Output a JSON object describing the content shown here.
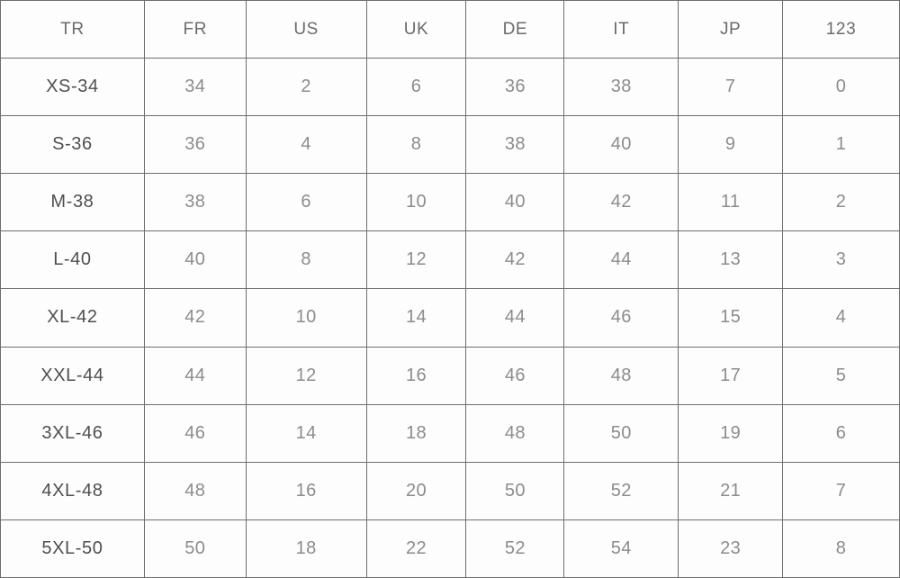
{
  "chart_data": {
    "type": "table",
    "columns": [
      "TR",
      "FR",
      "US",
      "UK",
      "DE",
      "IT",
      "JP",
      "123"
    ],
    "rows": [
      [
        "XS-34",
        "34",
        "2",
        "6",
        "36",
        "38",
        "7",
        "0"
      ],
      [
        "S-36",
        "36",
        "4",
        "8",
        "38",
        "40",
        "9",
        "1"
      ],
      [
        "M-38",
        "38",
        "6",
        "10",
        "40",
        "42",
        "11",
        "2"
      ],
      [
        "L-40",
        "40",
        "8",
        "12",
        "42",
        "44",
        "13",
        "3"
      ],
      [
        "XL-42",
        "42",
        "10",
        "14",
        "44",
        "46",
        "15",
        "4"
      ],
      [
        "XXL-44",
        "44",
        "12",
        "16",
        "46",
        "48",
        "17",
        "5"
      ],
      [
        "3XL-46",
        "46",
        "14",
        "18",
        "48",
        "50",
        "19",
        "6"
      ],
      [
        "4XL-48",
        "48",
        "16",
        "20",
        "50",
        "52",
        "21",
        "7"
      ],
      [
        "5XL-50",
        "50",
        "18",
        "22",
        "52",
        "54",
        "23",
        "8"
      ]
    ],
    "layout": {
      "grid": true,
      "header_position": "top",
      "first_column_role": "size-label"
    }
  },
  "colors": {
    "border": "#6e6e6e",
    "header_text": "#6b6b6b",
    "size_label_text": "#4f4f4f",
    "value_text": "#8c8c8c",
    "background": "#fdfdfd"
  }
}
